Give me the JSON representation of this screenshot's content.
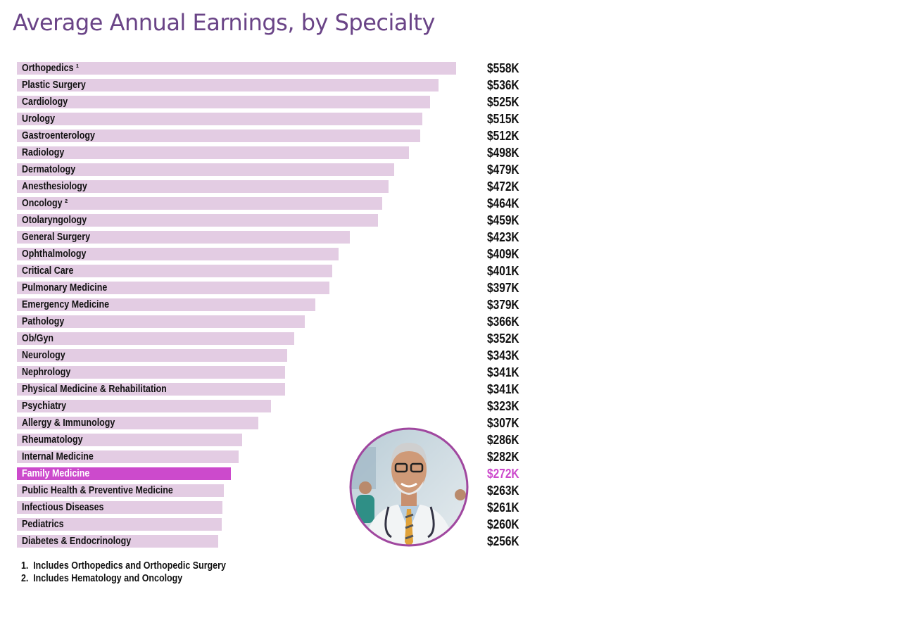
{
  "chart_data": {
    "type": "bar",
    "orientation": "horizontal",
    "title": "Average Annual Earnings, by Specialty",
    "unit": "$K",
    "categories": [
      "Orthopedics ¹",
      "Plastic Surgery",
      "Cardiology",
      "Urology",
      "Gastroenterology",
      "Radiology",
      "Dermatology",
      "Anesthesiology",
      "Oncology ²",
      "Otolaryngology",
      "General Surgery",
      "Ophthalmology",
      "Critical Care",
      "Pulmonary Medicine",
      "Emergency Medicine",
      "Pathology",
      "Ob/Gyn",
      "Neurology",
      "Nephrology",
      "Physical Medicine & Rehabilitation",
      "Psychiatry",
      "Allergy & Immunology",
      "Rheumatology",
      "Internal Medicine",
      "Family Medicine",
      "Public Health & Preventive Medicine",
      "Infectious Diseases",
      "Pediatrics",
      "Diabetes & Endocrinology"
    ],
    "values": [
      558,
      536,
      525,
      515,
      512,
      498,
      479,
      472,
      464,
      459,
      423,
      409,
      401,
      397,
      379,
      366,
      352,
      343,
      341,
      341,
      323,
      307,
      286,
      282,
      272,
      263,
      261,
      260,
      256
    ],
    "value_labels": [
      "$558K",
      "$536K",
      "$525K",
      "$515K",
      "$512K",
      "$498K",
      "$479K",
      "$472K",
      "$464K",
      "$459K",
      "$423K",
      "$409K",
      "$401K",
      "$397K",
      "$379K",
      "$366K",
      "$352K",
      "$343K",
      "$341K",
      "$341K",
      "$323K",
      "$307K",
      "$286K",
      "$282K",
      "$272K",
      "$263K",
      "$261K",
      "$260K",
      "$256K"
    ],
    "highlight": "Family Medicine",
    "colors": {
      "bar": "#e3cce3",
      "highlight": "#cc4acc",
      "title": "#6a4487"
    },
    "xlim": [
      0,
      558
    ],
    "grid": false,
    "legend": "none"
  },
  "footnotes": [
    {
      "num": "1.",
      "text": "Includes Orthopedics and Orthopedic Surgery"
    },
    {
      "num": "2.",
      "text": "Includes Hematology and Oncology"
    }
  ],
  "image": {
    "subject": "smiling-doctor-photo"
  }
}
